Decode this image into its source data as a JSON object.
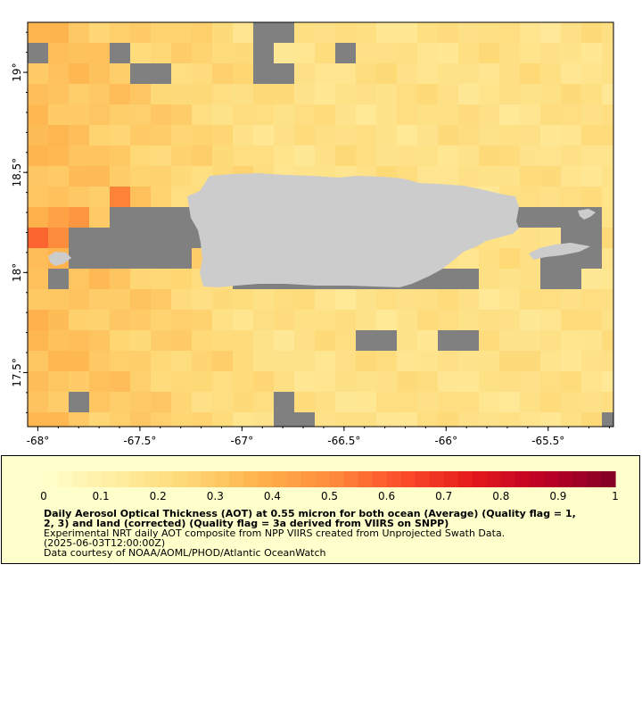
{
  "map": {
    "lon_range": [
      -68.05,
      -65.18
    ],
    "lat_range": [
      17.23,
      19.25
    ],
    "lon_ticks": [
      {
        "value": -68,
        "label": "-68°"
      },
      {
        "value": -67.5,
        "label": "-67.5°"
      },
      {
        "value": -67,
        "label": "-67°"
      },
      {
        "value": -66.5,
        "label": "-66.5°"
      },
      {
        "value": -66,
        "label": "-66°"
      },
      {
        "value": -65.5,
        "label": "-65.5°"
      }
    ],
    "lat_ticks": [
      {
        "value": 19,
        "label": "19°"
      },
      {
        "value": 18.5,
        "label": "18.5°"
      },
      {
        "value": 18,
        "label": "18°"
      },
      {
        "value": 17.5,
        "label": "17.5°"
      }
    ],
    "colors": {
      "land": "#cccccc",
      "missing": "#808080",
      "background": "#ffffff"
    }
  },
  "colorbar": {
    "min": 0,
    "max": 1,
    "ticks": [
      {
        "value": 0,
        "label": "0"
      },
      {
        "value": 0.1,
        "label": "0.1"
      },
      {
        "value": 0.2,
        "label": "0.2"
      },
      {
        "value": 0.3,
        "label": "0.3"
      },
      {
        "value": 0.4,
        "label": "0.4"
      },
      {
        "value": 0.5,
        "label": "0.5"
      },
      {
        "value": 0.6,
        "label": "0.6"
      },
      {
        "value": 0.7,
        "label": "0.7"
      },
      {
        "value": 0.8,
        "label": "0.8"
      },
      {
        "value": 0.9,
        "label": "0.9"
      },
      {
        "value": 1,
        "label": "1"
      }
    ],
    "palette": [
      "#ffffcc",
      "#ffeda0",
      "#fed976",
      "#feb24c",
      "#fd8d3c",
      "#fc4e2a",
      "#e31a1c",
      "#bd0026",
      "#800026"
    ]
  },
  "caption": {
    "title_line1": "Daily Aerosol Optical Thickness (AOT) at 0.55 micron for both ocean (Average) (Quality flag = 1,",
    "title_line2": "2, 3) and land (corrected) (Quality flag = 3a derived from VIIRS on SNPP)",
    "line3": "Experimental NRT daily AOT composite from NPP VIIRS created from Unprojected Swath Data.",
    "line4": "(2025-06-03T12:00:00Z)",
    "line5": "Data courtesy of NOAA/AOML/PHOD/Atlantic OceanWatch"
  }
}
